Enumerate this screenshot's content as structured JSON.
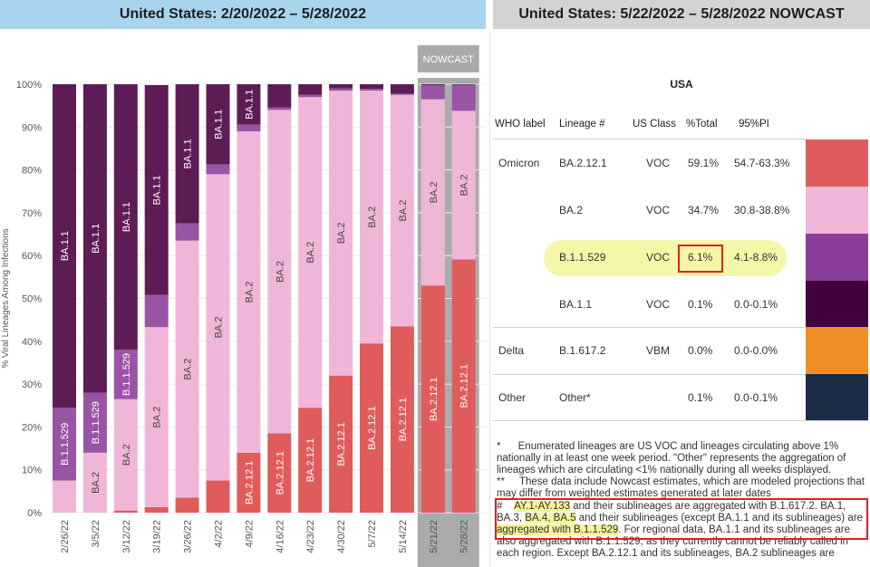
{
  "left_panel": {
    "title": "United States: 2/20/2022 – 5/28/2022"
  },
  "right_panel": {
    "title": "United States: 5/22/2022 – 5/28/2022 NOWCAST"
  },
  "chart_data": {
    "type": "bar",
    "stacked": true,
    "ylabel": "% Viral Lineages Among Infections",
    "ylim": [
      0,
      100
    ],
    "yticks": [
      "0%",
      "10%",
      "20%",
      "30%",
      "40%",
      "50%",
      "60%",
      "70%",
      "80%",
      "90%",
      "100%"
    ],
    "nowcast_label": "NOWCAST",
    "categories": [
      "2/26/22",
      "3/5/22",
      "3/12/22",
      "3/19/22",
      "3/26/22",
      "4/2/22",
      "4/9/22",
      "4/16/22",
      "4/23/22",
      "4/30/22",
      "5/7/22",
      "5/14/22",
      "5/21/22",
      "5/28/22"
    ],
    "nowcast_categories": [
      "5/21/22",
      "5/28/22"
    ],
    "series": [
      {
        "name": "BA.2.12.1",
        "color": "#e05c5c",
        "values": [
          0,
          0,
          0.5,
          1.3,
          3.5,
          7.5,
          14,
          18.5,
          24.5,
          32,
          39.5,
          43.5,
          53,
          59.1
        ]
      },
      {
        "name": "BA.2",
        "color": "#f0b6d8",
        "values": [
          7.5,
          14,
          26,
          42,
          60,
          71.5,
          75,
          75.5,
          72.5,
          66.5,
          59,
          54,
          43.5,
          34.7
        ]
      },
      {
        "name": "B.1.1.529",
        "color": "#9a54a6",
        "values": [
          17,
          14,
          11.5,
          7.5,
          4,
          2.3,
          1.6,
          0.6,
          0.5,
          0.5,
          0.4,
          0.3,
          3.3,
          6.1
        ]
      },
      {
        "name": "BA.1.1",
        "color": "#5e1c55",
        "values": [
          75.5,
          72,
          62,
          49,
          32.5,
          18.7,
          9.4,
          5.4,
          2.5,
          1,
          1.1,
          2.2,
          0.2,
          0.1
        ]
      }
    ],
    "segment_labels": [
      [
        "",
        "",
        "B.1.1.529",
        "BA.1.1"
      ],
      [
        "",
        "BA.2",
        "B.1.1.529",
        "BA.1.1"
      ],
      [
        "",
        "BA.2",
        "B.1.1.529",
        "BA.1.1"
      ],
      [
        "",
        "BA.2",
        "",
        "BA.1.1"
      ],
      [
        "",
        "BA.2",
        "",
        "BA.1.1"
      ],
      [
        "",
        "BA.2",
        "",
        "BA.1.1"
      ],
      [
        "BA.2.12.1",
        "BA.2",
        "",
        "BA.1.1"
      ],
      [
        "BA.2.12.1",
        "BA.2",
        "",
        ""
      ],
      [
        "BA.2.12.1",
        "BA.2",
        "",
        ""
      ],
      [
        "BA.2.12.1",
        "BA.2",
        "",
        ""
      ],
      [
        "BA.2.12.1",
        "BA.2",
        "",
        ""
      ],
      [
        "BA.2.12.1",
        "BA.2",
        "",
        ""
      ],
      [
        "BA.2.12.1",
        "BA.2",
        "",
        ""
      ],
      [
        "BA.2.12.1",
        "BA.2",
        "",
        ""
      ]
    ]
  },
  "table": {
    "region": "USA",
    "headers": [
      "WHO label",
      "Lineage #",
      "US Class",
      "%Total",
      "95%PI"
    ],
    "rows": [
      {
        "who": "Omicron",
        "lineage": "BA.2.12.1",
        "class": "VOC",
        "total": "59.1%",
        "pi": "54.7-63.3%",
        "color": "#e05c5c"
      },
      {
        "who": "",
        "lineage": "BA.2",
        "class": "VOC",
        "total": "34.7%",
        "pi": "30.8-38.8%",
        "color": "#f0b6d8"
      },
      {
        "who": "",
        "lineage": "B.1.1.529",
        "class": "VOC",
        "total": "6.1%",
        "pi": "4.1-8.8%",
        "color": "#8a3e9a"
      },
      {
        "who": "",
        "lineage": "BA.1.1",
        "class": "VOC",
        "total": "0.1%",
        "pi": "0.0-0.1%",
        "color": "#43003f"
      },
      {
        "who": "Delta",
        "lineage": "B.1.617.2",
        "class": "VBM",
        "total": "0.0%",
        "pi": "0.0-0.0%",
        "color": "#ef8e25"
      },
      {
        "who": "Other",
        "lineage": "Other*",
        "class": "",
        "total": "0.1%",
        "pi": "0.0-0.1%",
        "color": "#1c2d48"
      }
    ]
  },
  "footnotes": {
    "n1_mark": "*",
    "n1": "Enumerated lineages are US VOC and lineages circulating above 1% nationally in at least one week period. \"Other\" represents the aggregation of lineages which are circulating <1% nationally during all weeks displayed.",
    "n2_mark": "**",
    "n2": "These data include Nowcast estimates, which are modeled projections that may differ from weighted estimates generated at later dates",
    "n3_mark": "#",
    "n3_a": "AY.1-AY.133",
    "n3_b": " and their sublineages are aggregated with B.1.617.2. BA.1, BA.3, ",
    "n3_c": "BA.4, BA.5",
    "n3_d": " and their sublineages (except BA.1.1 and its sublineages) are ",
    "n3_e": "aggregated with B.1.1.529",
    "n3_f": ". For regional data, BA.1.1 and its sublineages are also aggregated with B.1.1.529, as they currently cannot be reliably called in each region. Except BA.2.12.1 and its sublineages, BA.2 sublineages are"
  }
}
